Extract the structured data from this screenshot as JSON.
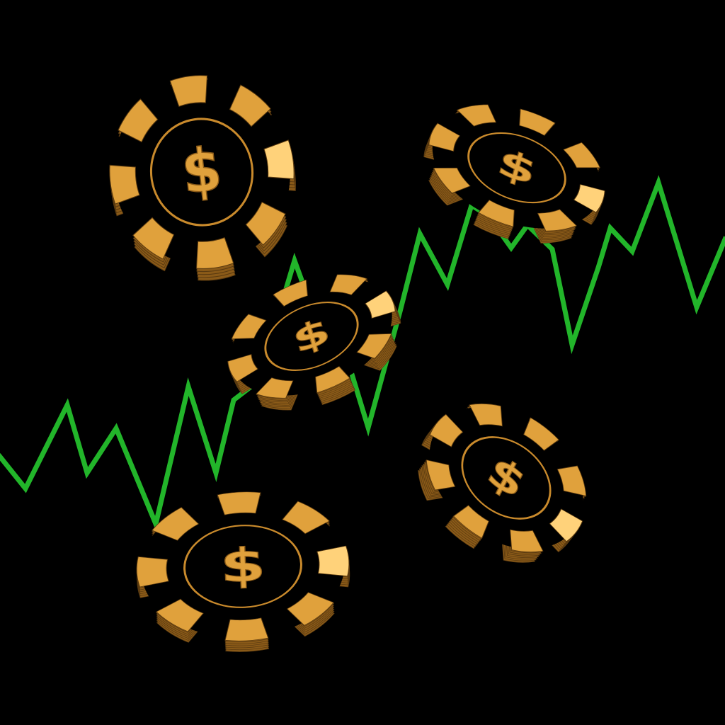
{
  "colors": {
    "background": "#000000",
    "trend_line": "#22b52a",
    "chip_gold": "#e0a13c",
    "chip_gold_dark": "#8a5a18",
    "chip_gold_light": "#ffd27a",
    "chip_ring": "#c98a2c",
    "chip_face": "#000000"
  },
  "trend_line": {
    "icon": "zigzag-uptrend-line"
  },
  "chips": [
    {
      "name": "poker-chip-top-left",
      "symbol": "$"
    },
    {
      "name": "poker-chip-top-right",
      "symbol": "$"
    },
    {
      "name": "poker-chip-center",
      "symbol": "$"
    },
    {
      "name": "poker-chip-bottom-left",
      "symbol": "$"
    },
    {
      "name": "poker-chip-bottom-right",
      "symbol": "$"
    }
  ]
}
